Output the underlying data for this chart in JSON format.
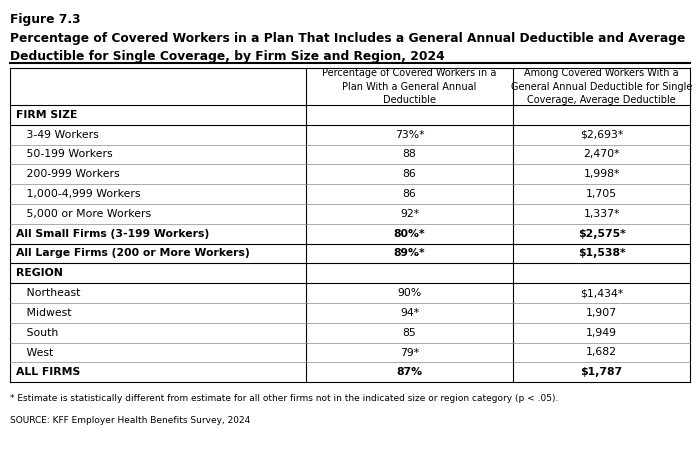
{
  "figure_label": "Figure 7.3",
  "title_line1": "Percentage of Covered Workers in a Plan That Includes a General Annual Deductible and Average",
  "title_line2": "Deductible for Single Coverage, by Firm Size and Region, 2024",
  "col_headers": [
    "Percentage of Covered Workers in a\nPlan With a General Annual\nDeductible",
    "Among Covered Workers With a\nGeneral Annual Deductible for Single\nCoverage, Average Deductible"
  ],
  "rows": [
    {
      "label": "FIRM SIZE",
      "col1": "",
      "col2": "",
      "bold": true,
      "indent": false,
      "section_header": true
    },
    {
      "label": "   3-49 Workers",
      "col1": "73%*",
      "col2": "$2,693*",
      "bold": false,
      "indent": false
    },
    {
      "label": "   50-199 Workers",
      "col1": "88",
      "col2": "2,470*",
      "bold": false,
      "indent": false
    },
    {
      "label": "   200-999 Workers",
      "col1": "86",
      "col2": "1,998*",
      "bold": false,
      "indent": false
    },
    {
      "label": "   1,000-4,999 Workers",
      "col1": "86",
      "col2": "1,705",
      "bold": false,
      "indent": false
    },
    {
      "label": "   5,000 or More Workers",
      "col1": "92*",
      "col2": "1,337*",
      "bold": false,
      "indent": false
    },
    {
      "label": "All Small Firms (3-199 Workers)",
      "col1": "80%*",
      "col2": "$2,575*",
      "bold": true,
      "indent": false,
      "thick_bottom": true
    },
    {
      "label": "All Large Firms (200 or More Workers)",
      "col1": "89%*",
      "col2": "$1,538*",
      "bold": true,
      "indent": false,
      "thick_bottom": true
    },
    {
      "label": "REGION",
      "col1": "",
      "col2": "",
      "bold": true,
      "indent": false,
      "section_header": true
    },
    {
      "label": "   Northeast",
      "col1": "90%",
      "col2": "$1,434*",
      "bold": false,
      "indent": false
    },
    {
      "label": "   Midwest",
      "col1": "94*",
      "col2": "1,907",
      "bold": false,
      "indent": false
    },
    {
      "label": "   South",
      "col1": "85",
      "col2": "1,949",
      "bold": false,
      "indent": false
    },
    {
      "label": "   West",
      "col1": "79*",
      "col2": "1,682",
      "bold": false,
      "indent": false
    },
    {
      "label": "ALL FIRMS",
      "col1": "87%",
      "col2": "$1,787",
      "bold": true,
      "indent": false,
      "thick_bottom": true
    }
  ],
  "footnote": "* Estimate is statistically different from estimate for all other firms not in the indicated size or region category (p < .05).",
  "source": "SOURCE: KFF Employer Health Benefits Survey, 2024",
  "background_color": "#ffffff",
  "fig_width": 6.98,
  "fig_height": 4.53,
  "dpi": 100
}
